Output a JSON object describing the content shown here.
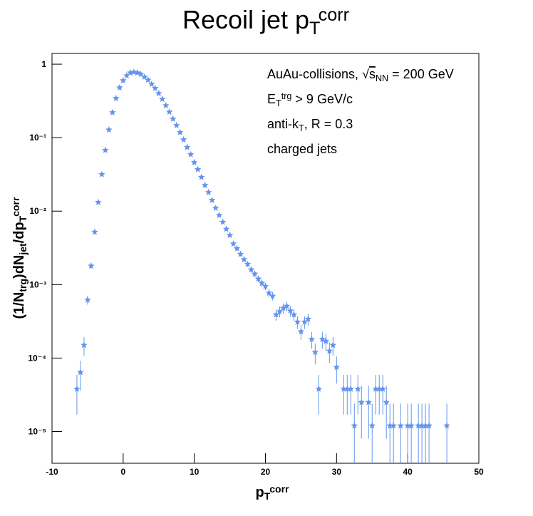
{
  "chart_data": {
    "type": "scatter",
    "title": [
      {
        "text": "Recoil jet p",
        "style": "normal"
      },
      {
        "text": "T",
        "style": "sub"
      },
      {
        "text": "corr",
        "style": "sup"
      }
    ],
    "x_label": [
      {
        "text": "p",
        "style": "normal"
      },
      {
        "text": "T",
        "style": "sub"
      },
      {
        "text": "corr",
        "style": "sup"
      }
    ],
    "y_label": [
      {
        "text": "(1/N",
        "style": "normal"
      },
      {
        "text": "trg",
        "style": "sub"
      },
      {
        "text": ")dN",
        "style": "normal"
      },
      {
        "text": "jet",
        "style": "sub"
      },
      {
        "text": "/dp",
        "style": "normal"
      },
      {
        "text": "T",
        "style": "sub"
      },
      {
        "text": "corr",
        "style": "sup"
      }
    ],
    "annotations": [
      [
        {
          "text": "AuAu-collisions, ",
          "style": "normal"
        },
        {
          "text": "√",
          "style": "normal"
        },
        {
          "text": "s",
          "style": "overline"
        },
        {
          "text": "NN",
          "style": "sub"
        },
        {
          "text": " = 200 GeV",
          "style": "normal"
        }
      ],
      [
        {
          "text": "E",
          "style": "normal"
        },
        {
          "text": "T",
          "style": "sub"
        },
        {
          "text": "trg",
          "style": "sup"
        },
        {
          "text": " > 9 GeV/c",
          "style": "normal"
        }
      ],
      [
        {
          "text": "anti-k",
          "style": "normal"
        },
        {
          "text": "T",
          "style": "sub"
        },
        {
          "text": ", R = 0.3",
          "style": "normal"
        }
      ],
      [
        {
          "text": "charged jets",
          "style": "normal"
        }
      ]
    ],
    "xlim": [
      -10,
      50
    ],
    "xticks": [
      -10,
      0,
      10,
      20,
      30,
      40,
      50
    ],
    "ylim": [
      3.7e-06,
      1.4
    ],
    "ylog": true,
    "yticks": [
      1,
      {
        "value": 0.1,
        "label": "10⁻¹"
      },
      {
        "value": 0.01,
        "label": "10⁻²"
      },
      {
        "value": 0.001,
        "label": "10⁻³"
      },
      {
        "value": 0.0001,
        "label": "10⁻⁴"
      },
      {
        "value": 1e-05,
        "label": "10⁻⁵"
      }
    ],
    "series": [
      {
        "color": "#6495ed",
        "x": [
          -6.5,
          -6,
          -5.5,
          -5,
          -4.5,
          -4,
          -3.5,
          -3,
          -2.5,
          -2,
          -1.5,
          -1,
          -0.5,
          0,
          0.5,
          1,
          1.5,
          2,
          2.5,
          3,
          3.5,
          4,
          4.5,
          5,
          5.5,
          6,
          6.5,
          7,
          7.5,
          8,
          8.5,
          9,
          9.5,
          10,
          10.5,
          11,
          11.5,
          12,
          12.5,
          13,
          13.5,
          14,
          14.5,
          15,
          15.5,
          16,
          16.5,
          17,
          17.5,
          18,
          18.5,
          19,
          19.5,
          20,
          20.5,
          21,
          21.5,
          22,
          22.5,
          23,
          23.5,
          24,
          24.5,
          25,
          25.5,
          26,
          26.5,
          27,
          27.5,
          28,
          28.5,
          29,
          29.5,
          30,
          31,
          31.5,
          32,
          32.5,
          33,
          33.5,
          34.5,
          35,
          35.5,
          36,
          36.5,
          37,
          37.5,
          38,
          39,
          40,
          40.5,
          41.5,
          42,
          42.5,
          43,
          45.5
        ],
        "values": [
          3.8e-05,
          6.4e-05,
          0.00015,
          0.00062,
          0.0018,
          0.0052,
          0.0132,
          0.0316,
          0.0675,
          0.128,
          0.22,
          0.343,
          0.48,
          0.6,
          0.7,
          0.765,
          0.78,
          0.765,
          0.73,
          0.67,
          0.61,
          0.535,
          0.47,
          0.4,
          0.335,
          0.274,
          0.224,
          0.18,
          0.147,
          0.118,
          0.094,
          0.074,
          0.059,
          0.046,
          0.037,
          0.029,
          0.0225,
          0.018,
          0.0141,
          0.011,
          0.0088,
          0.0071,
          0.0057,
          0.0047,
          0.0036,
          0.0031,
          0.0026,
          0.0022,
          0.0019,
          0.0016,
          0.0014,
          0.0012,
          0.00105,
          0.00095,
          0.00077,
          0.0007,
          0.00039,
          0.00043,
          0.00048,
          0.00051,
          0.00044,
          0.00039,
          0.00031,
          0.00023,
          0.00031,
          0.00034,
          0.00018,
          0.00012,
          3.8e-05,
          0.00018,
          0.00017,
          0.000125,
          0.00015,
          7.5e-05,
          3.8e-05,
          3.8e-05,
          3.8e-05,
          1.2e-05,
          3.8e-05,
          2.5e-05,
          2.5e-05,
          1.2e-05,
          3.8e-05,
          3.8e-05,
          3.8e-05,
          2.5e-05,
          1.2e-05,
          1.2e-05,
          1.2e-05,
          1.2e-05,
          1.2e-05,
          1.2e-05,
          1.2e-05,
          1.2e-05,
          1.2e-05,
          1.2e-05
        ],
        "errors": [
          2.1e-05,
          2.8e-05,
          4.2e-05,
          8.6e-05,
          0.00015,
          0.00025,
          0.0004,
          0.00062,
          0.0009,
          0.0012,
          0.0016,
          0.002,
          0.0024,
          0.0027,
          0.0029,
          0.003,
          0.0031,
          0.003,
          0.003,
          0.0028,
          0.0027,
          0.0025,
          0.0024,
          0.0022,
          0.002,
          0.0018,
          0.0016,
          0.0015,
          0.0013,
          0.0012,
          0.0011,
          0.00094,
          0.00084,
          0.00074,
          0.00067,
          0.00059,
          0.00052,
          0.00046,
          0.00041,
          0.00036,
          0.00032,
          0.00029,
          0.00026,
          0.00024,
          0.00021,
          0.00019,
          0.00018,
          0.00016,
          0.00015,
          0.00014,
          0.00013,
          0.00012,
          0.00011,
          0.00011,
          9.6e-05,
          9.2e-05,
          6.8e-05,
          7.2e-05,
          7.6e-05,
          7.8e-05,
          7.3e-05,
          6.8e-05,
          6.1e-05,
          5.3e-05,
          6.1e-05,
          6.4e-05,
          4.6e-05,
          3.8e-05,
          2.1e-05,
          4.6e-05,
          4.5e-05,
          3.9e-05,
          4.2e-05,
          3e-05,
          2.1e-05,
          2.1e-05,
          2.1e-05,
          1.2e-05,
          2.1e-05,
          1.7e-05,
          1.7e-05,
          1.2e-05,
          2.1e-05,
          2.1e-05,
          2.1e-05,
          1.7e-05,
          1.2e-05,
          1.2e-05,
          1.2e-05,
          1.2e-05,
          1.2e-05,
          1.2e-05,
          1.2e-05,
          1.2e-05,
          1.2e-05,
          1.2e-05
        ]
      }
    ]
  }
}
